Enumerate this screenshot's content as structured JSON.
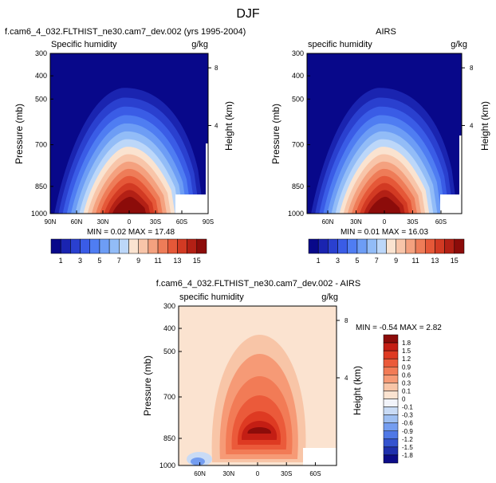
{
  "page_title": "DJF",
  "chart_data": [
    {
      "type": "contour",
      "title": "f.cam6_4_032.FLTHIST_ne30.cam7_dev.002 (yrs 1995-2004)",
      "left_label": "Specific humidity",
      "right_label": "g/kg",
      "ylabel": "Pressure (mb)",
      "ylabel_right": "Height (km)",
      "y_ticks": [
        "300",
        "400",
        "500",
        "700",
        "850",
        "1000"
      ],
      "x_ticks": [
        "90N",
        "60N",
        "30N",
        "0",
        "30S",
        "60S",
        "90S"
      ],
      "height_ticks": [
        "8",
        "4"
      ],
      "stats": "MIN =  0.02  MAX =  17.48",
      "peak": 17.48
    },
    {
      "type": "contour",
      "title": "AIRS",
      "left_label": "specific humidity",
      "right_label": "g/kg",
      "ylabel": "Pressure (mb)",
      "ylabel_right": "Height (km)",
      "y_ticks": [
        "300",
        "400",
        "500",
        "700",
        "850",
        "1000"
      ],
      "x_ticks": [
        "60N",
        "30N",
        "0",
        "30S",
        "60S"
      ],
      "height_ticks": [
        "8",
        "4"
      ],
      "stats": "MIN =  0.01  MAX =  16.03",
      "peak": 16.03
    },
    {
      "type": "contour",
      "title": "f.cam6_4_032.FLTHIST_ne30.cam7_dev.002 - AIRS",
      "left_label": "specific humidity",
      "right_label": "g/kg",
      "ylabel": "Pressure (mb)",
      "ylabel_right": "Height (km)",
      "y_ticks": [
        "300",
        "400",
        "500",
        "700",
        "850",
        "1000"
      ],
      "x_ticks": [
        "60N",
        "30N",
        "0",
        "30S",
        "60S"
      ],
      "height_ticks": [
        "8",
        "4"
      ],
      "stats": "MIN = -0.54  MAX =  2.82"
    }
  ],
  "colorbar_top": {
    "labels": [
      "1",
      "3",
      "5",
      "7",
      "9",
      "11",
      "13",
      "15"
    ],
    "colors": [
      "#08088a",
      "#1a24b0",
      "#2a40cf",
      "#3a5ce6",
      "#4f7df2",
      "#6d9df5",
      "#92bcf7",
      "#bcd7f9",
      "#fae3d0",
      "#f8c5a9",
      "#f4a17f",
      "#ee7c58",
      "#e55838",
      "#d23a23",
      "#b32015",
      "#8c0c0a"
    ]
  },
  "colorbar_diff": {
    "labels": [
      "1.8",
      "1.5",
      "1.2",
      "0.9",
      "0.6",
      "0.3",
      "0.1",
      "0",
      "-0.1",
      "-0.3",
      "-0.6",
      "-0.9",
      "-1.2",
      "-1.5",
      "-1.8"
    ],
    "colors": [
      "#8c0c0a",
      "#c41e14",
      "#de3a22",
      "#eb5a3a",
      "#f27b56",
      "#f69a76",
      "#f8c5a7",
      "#fbe3d0",
      "#f2f4fa",
      "#c9dbf5",
      "#9ebff2",
      "#749df0",
      "#4f78e6",
      "#3453cf",
      "#1f30ad",
      "#0c0c88"
    ]
  }
}
